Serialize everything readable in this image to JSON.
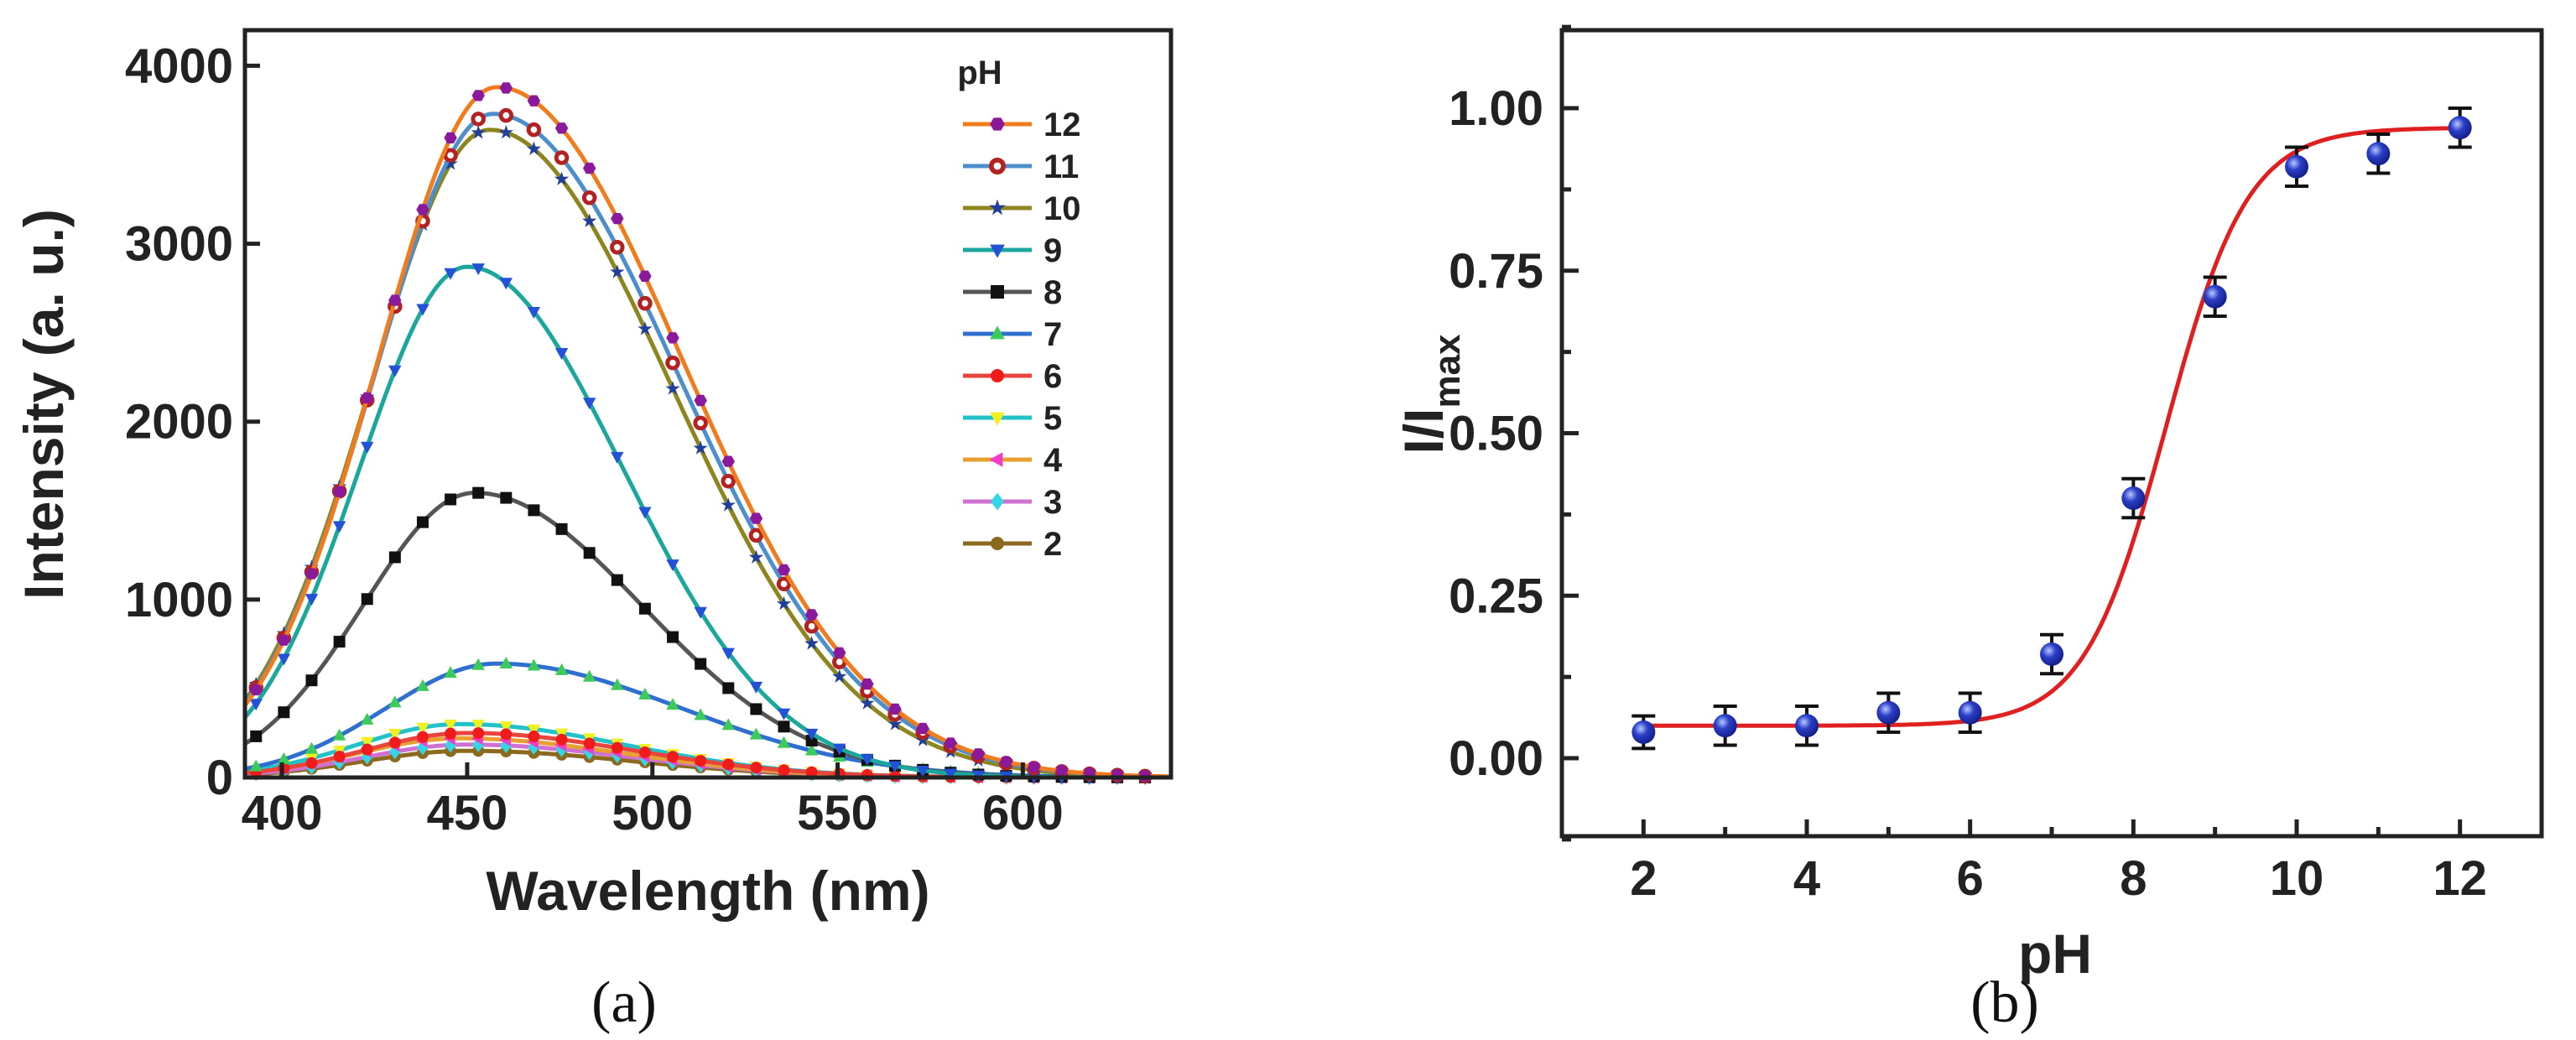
{
  "chart_data": [
    {
      "type": "line",
      "panel": "(a)",
      "xlabel": "Wavelength (nm)",
      "ylabel": "Intensity (a. u.)",
      "xlim": [
        390,
        640
      ],
      "ylim": [
        0,
        4200
      ],
      "xticks": [
        400,
        450,
        500,
        550,
        600
      ],
      "yticks": [
        0,
        1000,
        2000,
        3000,
        4000
      ],
      "legend_title": "pH",
      "legend_position": "top-right",
      "wavelength_start": 393,
      "wavelength_step": 7.5,
      "series": [
        {
          "name": "12",
          "color": "#F07C1E",
          "marker": "hexagon",
          "marker_color": "#8A1A9B",
          "peak": 3880,
          "center": 458,
          "sigma_left": 32,
          "sigma_right": 50
        },
        {
          "name": "11",
          "color": "#4C8FCB",
          "marker": "ring",
          "marker_color": "#B22222",
          "peak": 3730,
          "center": 457,
          "sigma_left": 32,
          "sigma_right": 50
        },
        {
          "name": "10",
          "color": "#8C8520",
          "marker": "star",
          "marker_color": "#1F3F9A",
          "peak": 3640,
          "center": 456,
          "sigma_left": 32,
          "sigma_right": 49
        },
        {
          "name": "9",
          "color": "#1BA79C",
          "marker": "triangle-down",
          "marker_color": "#2452D6",
          "peak": 2870,
          "center": 450,
          "sigma_left": 29,
          "sigma_right": 42
        },
        {
          "name": "8",
          "color": "#555555",
          "marker": "square",
          "marker_color": "#111111",
          "peak": 1600,
          "center": 452,
          "sigma_left": 30,
          "sigma_right": 45
        },
        {
          "name": "7",
          "color": "#2F6FD0",
          "marker": "triangle-up",
          "marker_color": "#3CCB5A",
          "peak": 640,
          "center": 458,
          "sigma_left": 30,
          "sigma_right": 50
        },
        {
          "name": "6",
          "color": "#E8453C",
          "marker": "circle",
          "marker_color": "#F01C1C",
          "peak": 250,
          "center": 450,
          "sigma_left": 28,
          "sigma_right": 45
        },
        {
          "name": "5",
          "color": "#23C1C9",
          "marker": "triangle-down",
          "marker_color": "#F0F020",
          "peak": 300,
          "center": 448,
          "sigma_left": 28,
          "sigma_right": 45
        },
        {
          "name": "4",
          "color": "#E8A030",
          "marker": "triangle-left",
          "marker_color": "#F03CC8",
          "peak": 220,
          "center": 448,
          "sigma_left": 28,
          "sigma_right": 45
        },
        {
          "name": "3",
          "color": "#D070D0",
          "marker": "diamond",
          "marker_color": "#35D5E8",
          "peak": 185,
          "center": 450,
          "sigma_left": 28,
          "sigma_right": 45
        },
        {
          "name": "2",
          "color": "#8B6A20",
          "marker": "circle",
          "marker_color": "#8B6A20",
          "peak": 150,
          "center": 450,
          "sigma_left": 28,
          "sigma_right": 45
        }
      ]
    },
    {
      "type": "scatter",
      "panel": "(b)",
      "xlabel": "pH",
      "ylabel_main": "I/I",
      "ylabel_sub": "max",
      "xlim": [
        1,
        13
      ],
      "ylim": [
        -0.12,
        1.12
      ],
      "xticks": [
        2,
        4,
        6,
        8,
        10,
        12
      ],
      "yticks": [
        0.0,
        0.25,
        0.5,
        0.75,
        1.0
      ],
      "ytick_labels": [
        "0.00",
        "0.25",
        "0.50",
        "0.75",
        "1.00"
      ],
      "marker_color": "#2A3FC8",
      "fit_color": "#E02020",
      "points": [
        {
          "x": 2,
          "y": 0.04,
          "err": 0.025
        },
        {
          "x": 3,
          "y": 0.05,
          "err": 0.03
        },
        {
          "x": 4,
          "y": 0.05,
          "err": 0.03
        },
        {
          "x": 5,
          "y": 0.07,
          "err": 0.03
        },
        {
          "x": 6,
          "y": 0.07,
          "err": 0.03
        },
        {
          "x": 7,
          "y": 0.16,
          "err": 0.03
        },
        {
          "x": 8,
          "y": 0.4,
          "err": 0.03
        },
        {
          "x": 9,
          "y": 0.71,
          "err": 0.03
        },
        {
          "x": 10,
          "y": 0.91,
          "err": 0.03
        },
        {
          "x": 11,
          "y": 0.93,
          "err": 0.03
        },
        {
          "x": 12,
          "y": 0.97,
          "err": 0.03
        }
      ],
      "fit": {
        "model": "sigmoid",
        "bottom": 0.05,
        "top": 0.97,
        "x0": 8.4,
        "slope": 0.5
      }
    }
  ]
}
